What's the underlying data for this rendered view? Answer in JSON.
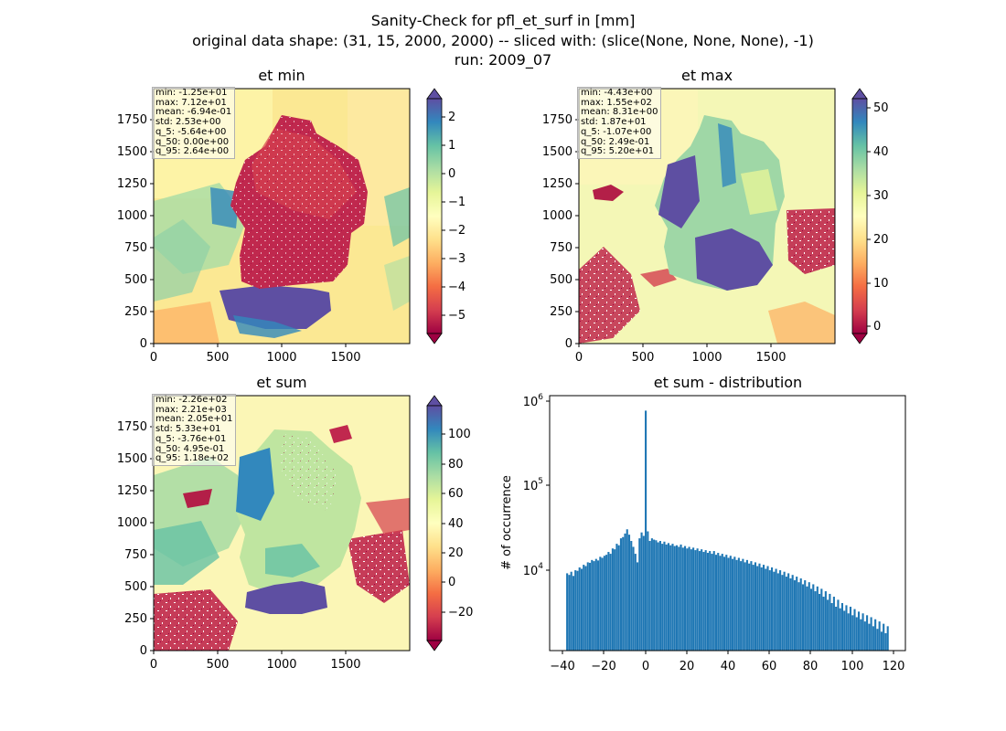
{
  "suptitle": {
    "line1": "Sanity-Check for pfl_et_surf in [mm]",
    "line2": "original data shape: (31, 15, 2000, 2000) -- sliced with: (slice(None, None, None), -1)",
    "line3": "run: 2009_07"
  },
  "panels": {
    "et_min": {
      "title": "et min",
      "stats": [
        "min: -1.25e+01",
        "max: 7.12e+01",
        "mean: -6.94e-01",
        "std: 2.53e+00",
        "q_5: -5.64e+00",
        "q_50: 0.00e+00",
        "q_95: 2.64e+00"
      ]
    },
    "et_max": {
      "title": "et max",
      "stats": [
        "min: -4.43e+00",
        "max: 1.55e+02",
        "mean: 8.31e+00",
        "std: 1.87e+01",
        "q_5: -1.07e+00",
        "q_50: 2.49e-01",
        "q_95: 5.20e+01"
      ]
    },
    "et_sum": {
      "title": "et sum",
      "stats": [
        "min: -2.26e+02",
        "max: 2.21e+03",
        "mean: 2.05e+01",
        "std: 5.33e+01",
        "q_5: -3.76e+01",
        "q_50: 4.95e-01",
        "q_95: 1.18e+02"
      ]
    },
    "hist": {
      "title": "et sum - distribution",
      "ylabel": "# of occurrence"
    }
  },
  "chart_data": [
    {
      "type": "heatmap",
      "title": "et min",
      "x_ticks": [
        "0",
        "500",
        "1000",
        "1500"
      ],
      "y_ticks": [
        "0",
        "250",
        "500",
        "750",
        "1000",
        "1250",
        "1500",
        "1750"
      ],
      "xlim": [
        0,
        2000
      ],
      "ylim": [
        0,
        2000
      ],
      "colormap": "Spectral",
      "colorbar_ticks": [
        "2",
        "1",
        "0",
        "−1",
        "−2",
        "−3",
        "−4",
        "−5"
      ],
      "colorbar_range": [
        -5.64,
        2.64
      ]
    },
    {
      "type": "heatmap",
      "title": "et max",
      "x_ticks": [
        "0",
        "500",
        "1000",
        "1500"
      ],
      "y_ticks": [
        "0",
        "250",
        "500",
        "750",
        "1000",
        "1250",
        "1500",
        "1750"
      ],
      "xlim": [
        0,
        2000
      ],
      "ylim": [
        0,
        2000
      ],
      "colormap": "Spectral",
      "colorbar_ticks": [
        "50",
        "40",
        "30",
        "20",
        "10",
        "0"
      ],
      "colorbar_range": [
        -1.07,
        52.0
      ]
    },
    {
      "type": "heatmap",
      "title": "et sum",
      "x_ticks": [
        "0",
        "500",
        "1000",
        "1500"
      ],
      "y_ticks": [
        "0",
        "250",
        "500",
        "750",
        "1000",
        "1250",
        "1500",
        "1750"
      ],
      "xlim": [
        0,
        2000
      ],
      "ylim": [
        0,
        2000
      ],
      "colormap": "Spectral",
      "colorbar_ticks": [
        "100",
        "80",
        "60",
        "40",
        "20",
        "0",
        "−20"
      ],
      "colorbar_range": [
        -37.6,
        118
      ]
    },
    {
      "type": "bar",
      "title": "et sum - distribution",
      "ylabel": "# of occurrence",
      "yscale": "log",
      "x_ticks": [
        "−40",
        "−20",
        "0",
        "20",
        "40",
        "60",
        "80",
        "100",
        "120"
      ],
      "y_ticks": [
        "10^4",
        "10^5",
        "10^6"
      ],
      "xlim": [
        -46,
        126
      ],
      "ylim_log10": [
        3.2,
        6.1
      ],
      "bin_width": 1,
      "bins_start": -38,
      "counts": [
        12000,
        11500,
        12500,
        11200,
        13000,
        12800,
        14000,
        13500,
        15000,
        14500,
        16000,
        15800,
        17000,
        16500,
        17500,
        16800,
        18500,
        18000,
        19000,
        19500,
        21000,
        20000,
        23000,
        22500,
        26000,
        25000,
        30000,
        31000,
        34000,
        38000,
        33000,
        28000,
        24000,
        20000,
        16000,
        30000,
        35000,
        32000,
        850000,
        36000,
        28000,
        30000,
        29000,
        28500,
        27000,
        28000,
        26000,
        27500,
        25500,
        26500,
        25000,
        26000,
        24500,
        25000,
        24000,
        25500,
        23500,
        24500,
        23000,
        24000,
        22500,
        23500,
        22000,
        23000,
        21500,
        22500,
        21000,
        22000,
        20500,
        21500,
        20000,
        21500,
        19500,
        20500,
        19000,
        20000,
        18500,
        19500,
        18000,
        19000,
        17500,
        18500,
        17000,
        18000,
        16500,
        17500,
        16000,
        17000,
        15500,
        16500,
        15000,
        16000,
        14500,
        15500,
        14000,
        15000,
        13500,
        14500,
        13000,
        14000,
        12500,
        13500,
        12000,
        13000,
        11500,
        12500,
        11000,
        12000,
        10500,
        11500,
        10000,
        11000,
        9500,
        10500,
        9000,
        10000,
        8500,
        9500,
        8000,
        9000,
        7500,
        8500,
        7000,
        8000,
        6500,
        7500,
        6000,
        7000,
        5500,
        6500,
        5000,
        6000,
        4800,
        5500,
        4500,
        5200,
        4200,
        5000,
        4000,
        4700,
        3800,
        4400,
        3600,
        4200,
        3400,
        4000,
        3200,
        3800,
        3000,
        3600,
        2800,
        3400,
        2600,
        3200,
        2500,
        3000
      ]
    }
  ]
}
